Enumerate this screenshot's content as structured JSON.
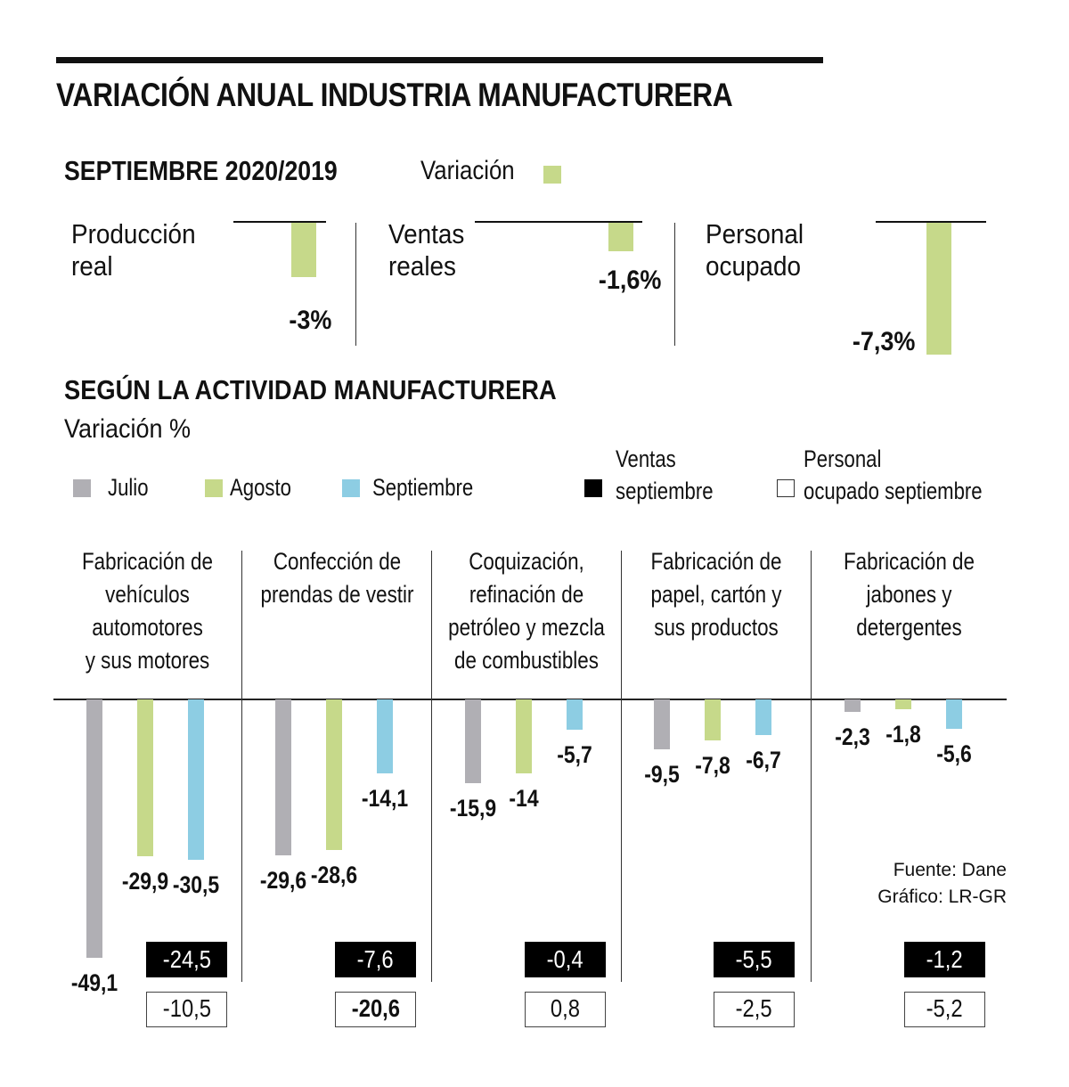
{
  "title": "VARIACIÓN ANUAL INDUSTRIA MANUFACTURERA",
  "section1": {
    "heading": "SEPTIEMBRE 2020/2019",
    "legend_label": "Variación",
    "legend_color": "#c6d98a",
    "kpis": [
      {
        "label_line1": "Producción",
        "label_line2": "real",
        "value": -3.0,
        "display": "-3%"
      },
      {
        "label_line1": "Ventas",
        "label_line2": "reales",
        "value": -1.6,
        "display": "-1,6%"
      },
      {
        "label_line1": "Personal",
        "label_line2": "ocupado",
        "value": -7.3,
        "display": "-7,3%"
      }
    ]
  },
  "section2": {
    "heading": "SEGÚN LA ACTIVIDAD MANUFACTURERA",
    "unit_label": "Variación %",
    "legend": [
      {
        "label": "Julio",
        "color": "#b0afb4"
      },
      {
        "label": "Agosto",
        "color": "#c6d98a"
      },
      {
        "label": "Septiembre",
        "color": "#8dcde3"
      },
      {
        "label_line1": "Ventas",
        "label_line2": "septiembre",
        "color": "#000000"
      },
      {
        "label_line1": "Personal",
        "label_line2": "ocupado septiembre",
        "color": "#ffffff"
      }
    ]
  },
  "chart_data": {
    "type": "bar",
    "title": "SEGÚN LA ACTIVIDAD MANUFACTURERA",
    "ylabel": "Variación %",
    "ylim": [
      -50,
      0
    ],
    "grid": false,
    "legend_position": "top",
    "categories": [
      [
        "Fabricación de",
        "vehículos",
        "automotores",
        "y sus motores"
      ],
      [
        "Confección de",
        "prendas de vestir"
      ],
      [
        "Coquización,",
        "refinación de",
        "petróleo y mezcla",
        "de combustibles"
      ],
      [
        "Fabricación de",
        "papel, cartón y",
        "sus productos"
      ],
      [
        "Fabricación de",
        "jabones y",
        "detergentes"
      ]
    ],
    "series": [
      {
        "name": "Julio",
        "color": "#b0afb4",
        "values": [
          -49.1,
          -29.6,
          -15.9,
          -9.5,
          -2.3
        ],
        "labels": [
          "-49,1",
          "-29,6",
          "-15,9",
          "-9,5",
          "-2,3"
        ]
      },
      {
        "name": "Agosto",
        "color": "#c6d98a",
        "values": [
          -29.9,
          -28.6,
          -14.0,
          -7.8,
          -1.8
        ],
        "labels": [
          "-29,9",
          "-28,6",
          "-14",
          "-7,8",
          "-1,8"
        ]
      },
      {
        "name": "Septiembre",
        "color": "#8dcde3",
        "values": [
          -30.5,
          -14.1,
          -5.7,
          -6.7,
          -5.6
        ],
        "labels": [
          "-30,5",
          "-14,1",
          "-5,7",
          "-6,7",
          "-5,6"
        ]
      }
    ],
    "ventas_septiembre": {
      "values": [
        -24.5,
        -7.6,
        -0.4,
        -5.5,
        -1.2
      ],
      "labels": [
        "-24,5",
        "-7,6",
        "-0,4",
        "-5,5",
        "-1,2"
      ]
    },
    "personal_ocupado_septiembre": {
      "values": [
        -10.5,
        -20.6,
        0.8,
        -2.5,
        -5.2
      ],
      "labels": [
        "-10,5",
        "-20,6",
        "0,8",
        "-2,5",
        "-5,2"
      ],
      "bold_index": 1
    }
  },
  "source": {
    "line1": "Fuente: Dane",
    "line2": "Gráfico: LR-GR"
  }
}
